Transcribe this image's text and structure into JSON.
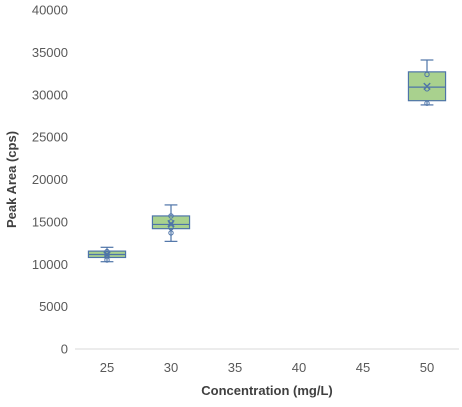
{
  "chart_data": {
    "type": "box",
    "xlabel": "Concentration (mg/L)",
    "ylabel": "Peak Area (cps)",
    "ylim": [
      0,
      40000
    ],
    "y_ticks": [
      0,
      5000,
      10000,
      15000,
      20000,
      25000,
      30000,
      35000,
      40000
    ],
    "y_tick_labels": [
      "0",
      "5000",
      "10000",
      "15000",
      "20000",
      "25000",
      "30000",
      "35000",
      "40000"
    ],
    "categories": [
      "25",
      "30",
      "35",
      "40",
      "45",
      "50"
    ],
    "grid": false,
    "box_fill": "#a9d18e",
    "box_stroke": "#4e74a8",
    "boxes": [
      {
        "category": "25",
        "min": 10300,
        "q1": 10800,
        "median": 11150,
        "q3": 11550,
        "max": 12000,
        "mean": 11100,
        "points": [
          10500,
          11000,
          11200,
          11500
        ]
      },
      {
        "category": "30",
        "min": 12700,
        "q1": 14200,
        "median": 14700,
        "q3": 15700,
        "max": 17000,
        "mean": 14800,
        "points": [
          13700,
          14300,
          15000,
          15700
        ]
      },
      {
        "category": "50",
        "min": 28800,
        "q1": 29300,
        "median": 30900,
        "q3": 32700,
        "max": 34100,
        "mean": 31000,
        "points": [
          29000,
          30700,
          32400
        ]
      }
    ]
  }
}
